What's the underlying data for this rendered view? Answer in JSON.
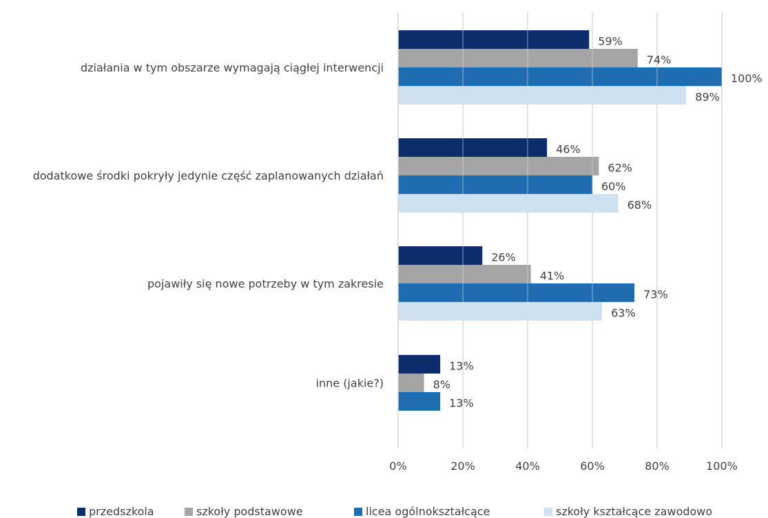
{
  "chart_data": {
    "type": "bar",
    "orientation": "horizontal",
    "categories": [
      "działania w tym obszarze wymagają ciągłej interwencji",
      "dodatkowe środki pokryły jedynie część zaplanowanych działań",
      "pojawiły się nowe potrzeby w tym zakresie",
      "inne (jakie?)"
    ],
    "series": [
      {
        "name": "przedszkola",
        "color": "#0b2d6b",
        "values": [
          59,
          46,
          26,
          13
        ],
        "labels": [
          "59%",
          "46%",
          "26%",
          "13%"
        ]
      },
      {
        "name": "szkoły podstawowe",
        "color": "#a5a5a5",
        "values": [
          74,
          62,
          41,
          8
        ],
        "labels": [
          "74%",
          "62%",
          "41%",
          "8%"
        ]
      },
      {
        "name": "licea ogólnokształcące",
        "color": "#1f6cb0",
        "values": [
          100,
          60,
          73,
          13
        ],
        "labels": [
          "100%",
          "60%",
          "73%",
          "13%"
        ]
      },
      {
        "name": "szkoły kształcące zawodowo",
        "color": "#cfe0f1",
        "values": [
          89,
          68,
          63,
          null
        ],
        "labels": [
          "89%",
          "68%",
          "63%",
          ""
        ]
      }
    ],
    "xlim": [
      0,
      100
    ],
    "x_ticks": [
      "0%",
      "20%",
      "40%",
      "60%",
      "80%",
      "100%"
    ],
    "grid": true,
    "legend_position": "bottom"
  }
}
